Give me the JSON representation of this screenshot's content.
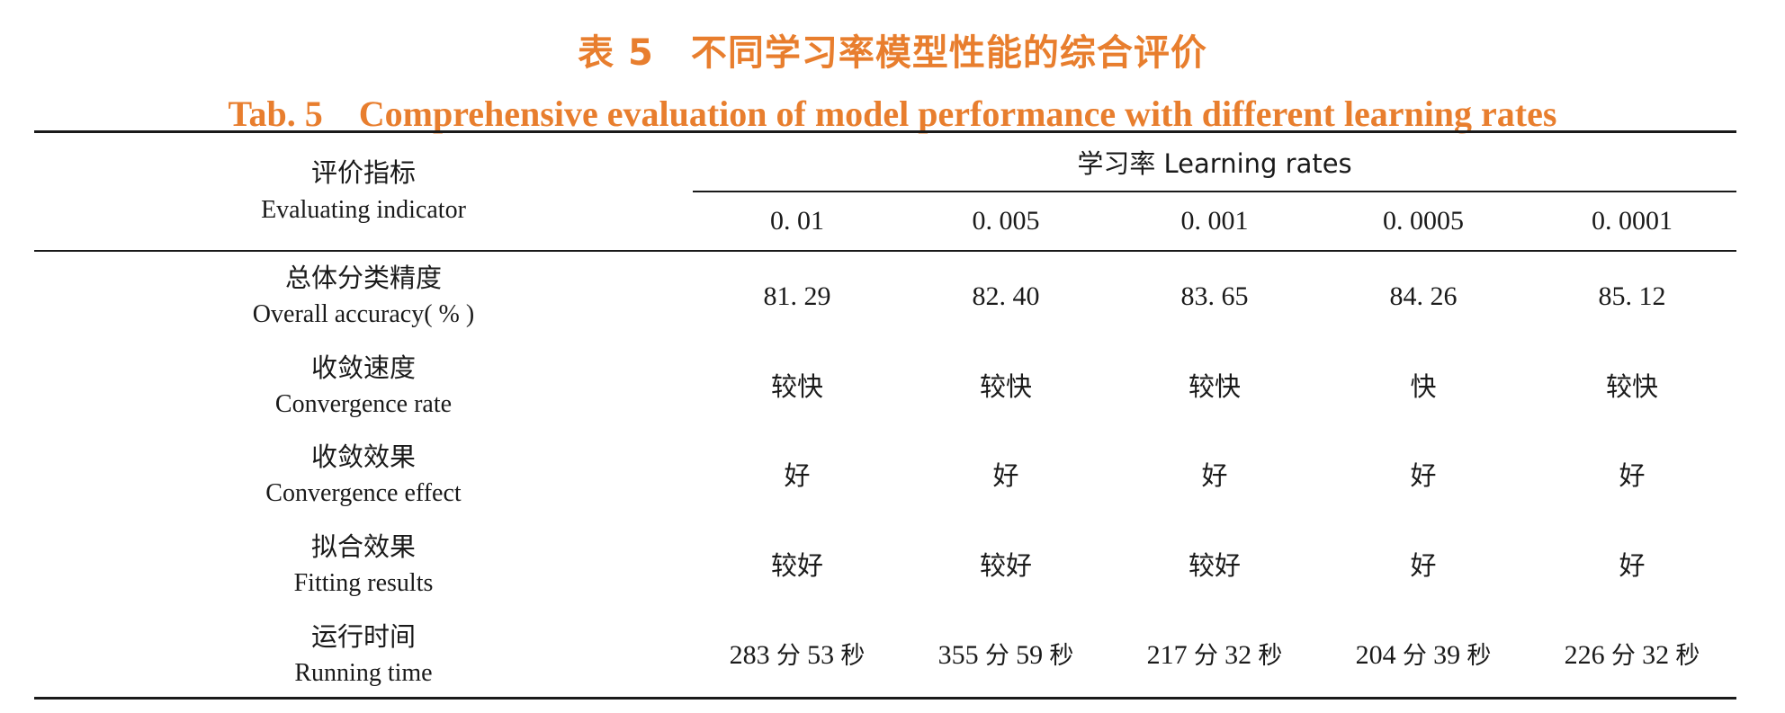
{
  "caption": {
    "cn": "表 5　不同学习率模型性能的综合评价",
    "en": "Tab. 5　Comprehensive evaluation of model performance with different learning rates"
  },
  "header": {
    "indicator_cn": "评价指标",
    "indicator_en": "Evaluating indicator",
    "group_label": "学习率 Learning rates",
    "learning_rates": [
      "0. 01",
      "0. 005",
      "0. 001",
      "0. 0005",
      "0. 0001"
    ]
  },
  "rows": [
    {
      "cn": "总体分类精度",
      "en": "Overall accuracy( % )",
      "values": [
        "81. 29",
        "82. 40",
        "83. 65",
        "84. 26",
        "85. 12"
      ]
    },
    {
      "cn": "收敛速度",
      "en": "Convergence rate",
      "values": [
        "较快",
        "较快",
        "较快",
        "快",
        "较快"
      ]
    },
    {
      "cn": "收敛效果",
      "en": "Convergence effect",
      "values": [
        "好",
        "好",
        "好",
        "好",
        "好"
      ]
    },
    {
      "cn": "拟合效果",
      "en": "Fitting results",
      "values": [
        "较好",
        "较好",
        "较好",
        "好",
        "好"
      ]
    },
    {
      "cn": "运行时间",
      "en": "Running time",
      "values": [
        {
          "min": "283",
          "min_unit": "分",
          "sec": "53",
          "sec_unit": "秒"
        },
        {
          "min": "355",
          "min_unit": "分",
          "sec": "59",
          "sec_unit": "秒"
        },
        {
          "min": "217",
          "min_unit": "分",
          "sec": "32",
          "sec_unit": "秒"
        },
        {
          "min": "204",
          "min_unit": "分",
          "sec": "39",
          "sec_unit": "秒"
        },
        {
          "min": "226",
          "min_unit": "分",
          "sec": "32",
          "sec_unit": "秒"
        }
      ]
    }
  ],
  "colors": {
    "caption": "#E87E2E",
    "text": "#1a1a1a",
    "rule": "#1a1a1a"
  }
}
